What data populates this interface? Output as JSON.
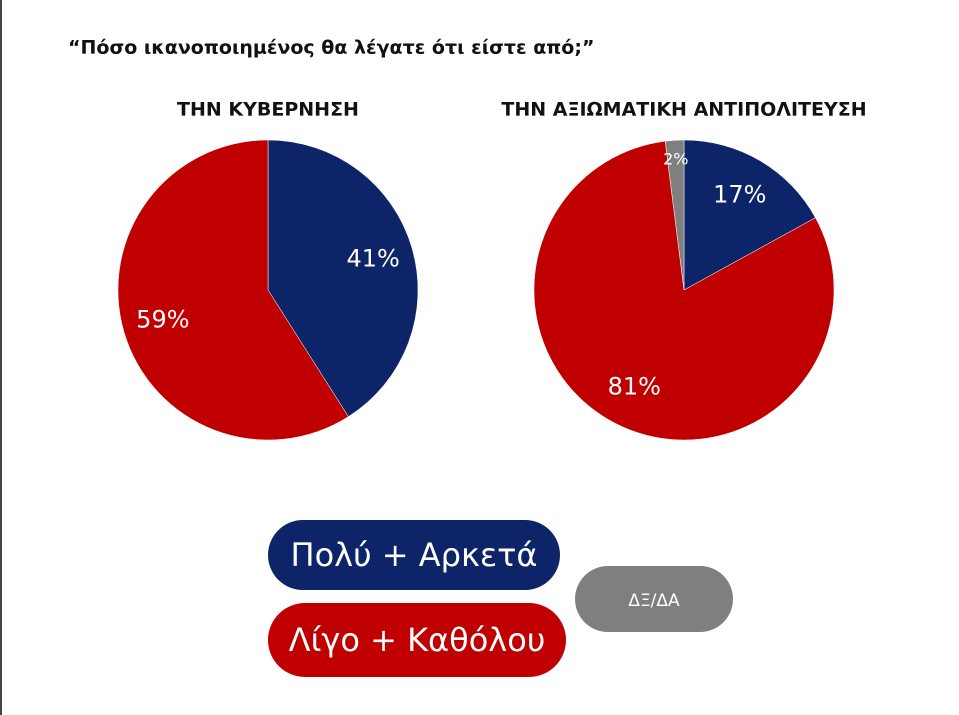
{
  "title": "“Πόσο ικανοποιημένος θα λέγατε ότι είστε από;”",
  "legend": [
    {
      "name": "Πολύ + Αρκετά",
      "color": "#0d2468"
    },
    {
      "name": "Λίγο + Καθόλου",
      "color": "#c00000"
    },
    {
      "name": "ΔΞ/ΔΑ",
      "color": "#7f7f7f"
    }
  ],
  "chart_data": [
    {
      "type": "pie",
      "title": "ΤΗΝ ΚΥΒΕΡΝΗΣΗ",
      "values": [
        41,
        59
      ],
      "value_labels": [
        "41%",
        "59%"
      ],
      "colors": [
        "#0d2468",
        "#c00000"
      ]
    },
    {
      "type": "pie",
      "title": "ΤΗΝ ΑΞΙΩΜΑΤΙΚΗ ΑΝΤΙΠΟΛΙΤΕΥΣΗ",
      "values": [
        17,
        81,
        2
      ],
      "value_labels": [
        "17%",
        "81%",
        "2%"
      ],
      "colors": [
        "#0d2468",
        "#c00000",
        "#7f7f7f"
      ]
    }
  ]
}
